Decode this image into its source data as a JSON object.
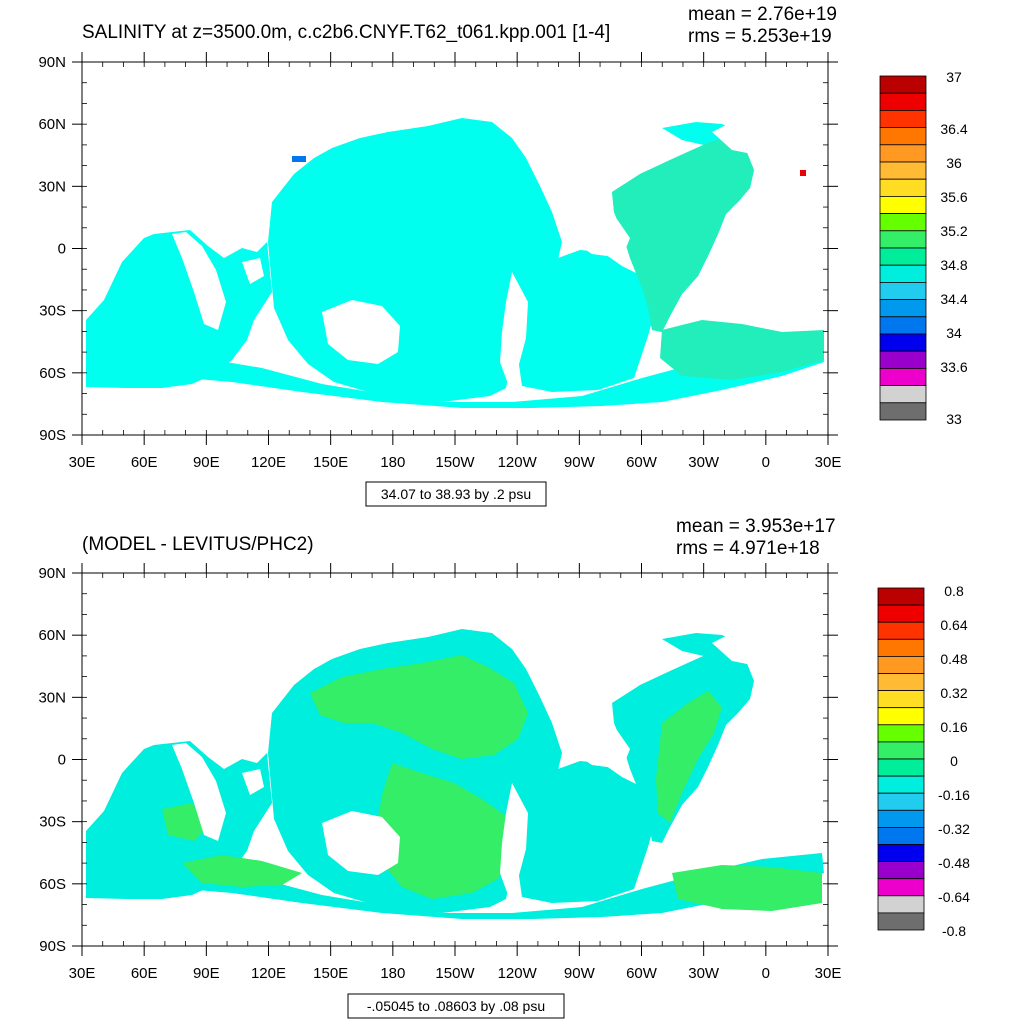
{
  "colors": {
    "ocean_salinity": "#00ffee",
    "ocean_salinity_green": "#22eebb",
    "ocean_diff_cyan": "#00eedd",
    "ocean_diff_green": "#33ee66",
    "palette": [
      "#6e6e6e",
      "#d2d2d2",
      "#ee00cc",
      "#9900cc",
      "#0000ee",
      "#0077ee",
      "#0099ee",
      "#22ccee",
      "#00eedd",
      "#00ee99",
      "#33ee66",
      "#66ff00",
      "#ffff00",
      "#ffdd22",
      "#ffbb33",
      "#ff9922",
      "#ff7700",
      "#ff3300",
      "#ee0000",
      "#bb0000"
    ]
  },
  "panel1": {
    "title": "SALINITY at z=3500.0m, c.c2b6.CNYF.T62_t061.kpp.001 [1-4]",
    "mean": "mean = 2.76e+19",
    "rms": "rms = 5.253e+19",
    "contour_info": "34.07 to 38.93 by .2 psu",
    "colorbar_labels": [
      "37",
      "36.4",
      "36",
      "35.6",
      "35.2",
      "34.8",
      "34.4",
      "34",
      "33.6",
      "33"
    ]
  },
  "panel2": {
    "title": "(MODEL - LEVITUS/PHC2)",
    "mean": "mean = 3.953e+17",
    "rms": "rms = 4.971e+18",
    "contour_info": "-.05045 to .08603 by .08 psu",
    "colorbar_labels": [
      "0.8",
      "0.64",
      "0.48",
      "0.32",
      "0.16",
      "0",
      "-0.16",
      "-0.32",
      "-0.48",
      "-0.64",
      "-0.8"
    ]
  },
  "axes": {
    "lat_labels": [
      "90N",
      "60N",
      "30N",
      "0",
      "30S",
      "60S",
      "90S"
    ],
    "lon_labels": [
      "30E",
      "60E",
      "90E",
      "120E",
      "150E",
      "180",
      "150W",
      "120W",
      "90W",
      "60W",
      "30W",
      "0",
      "30E"
    ]
  }
}
